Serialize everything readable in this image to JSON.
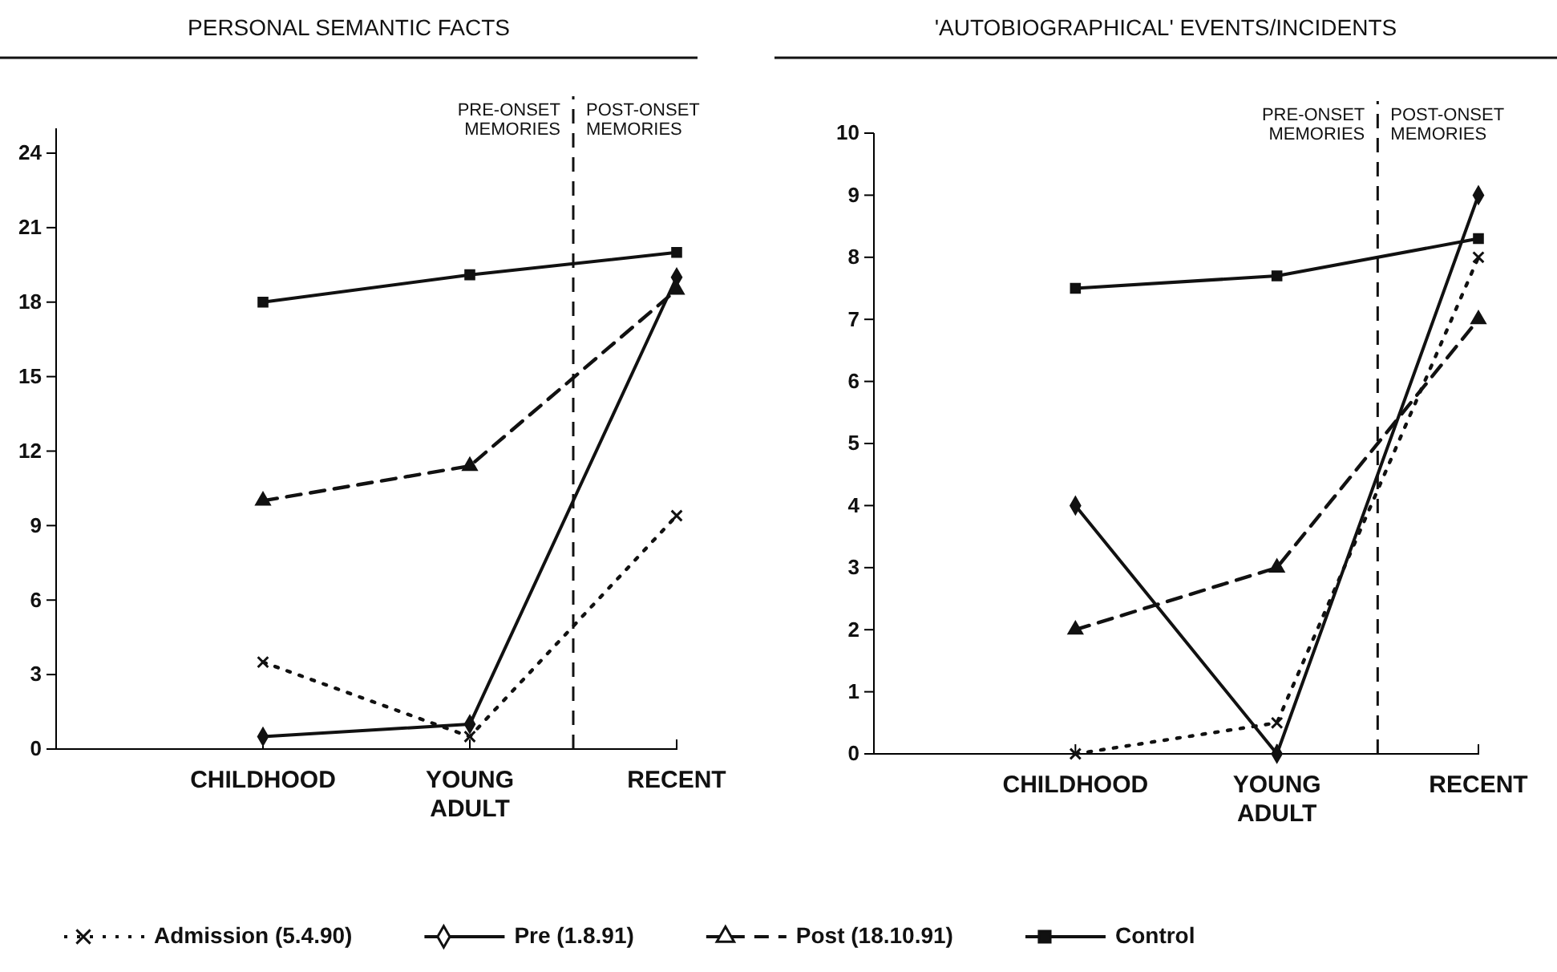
{
  "chart_data": [
    {
      "type": "line",
      "title": "PERSONAL SEMANTIC FACTS",
      "categories": [
        "CHILDHOOD",
        "YOUNG ADULT",
        "RECENT"
      ],
      "ylim": [
        0,
        25
      ],
      "yticks": [
        0,
        3,
        6,
        9,
        12,
        15,
        18,
        21,
        24
      ],
      "grid": false,
      "legend": "bottom",
      "annotations": [
        "PRE-ONSET MEMORIES",
        "POST-ONSET MEMORIES"
      ],
      "series": [
        {
          "name": "Admission (5.4.90)",
          "color": "#111111",
          "marker": "cross",
          "line_style": "dotted",
          "values": [
            3.5,
            0.5,
            9.4
          ]
        },
        {
          "name": "Pre (1.8.91)",
          "color": "#111111",
          "marker": "diamond",
          "line_style": "solid",
          "values": [
            0.5,
            1,
            19
          ]
        },
        {
          "name": "Post (18.10.91)",
          "color": "#111111",
          "marker": "triangle",
          "line_style": "dashed",
          "values": [
            10,
            11.4,
            18.5
          ]
        },
        {
          "name": "Control",
          "color": "#111111",
          "marker": "square",
          "line_style": "solid",
          "values": [
            18,
            19.1,
            20
          ]
        }
      ]
    },
    {
      "type": "line",
      "title": "'AUTOBIOGRAPHICAL' EVENTS/INCIDENTS",
      "categories": [
        "CHILDHOOD",
        "YOUNG ADULT",
        "RECENT"
      ],
      "ylim": [
        0,
        10
      ],
      "yticks": [
        0,
        1,
        2,
        3,
        4,
        5,
        6,
        7,
        8,
        9,
        10
      ],
      "grid": false,
      "annotations": [
        "PRE-ONSET MEMORIES",
        "POST-ONSET MEMORIES"
      ],
      "series": [
        {
          "color": "#111111",
          "marker": "cross",
          "line_style": "dotted",
          "values": [
            0,
            0.5,
            8
          ]
        },
        {
          "color": "#111111",
          "marker": "diamond",
          "line_style": "solid",
          "values": [
            4,
            0,
            9
          ]
        },
        {
          "color": "#111111",
          "marker": "triangle",
          "line_style": "dashed",
          "values": [
            2,
            3,
            7
          ]
        },
        {
          "color": "#111111",
          "marker": "square",
          "line_style": "solid",
          "values": [
            7.5,
            7.7,
            8.3
          ]
        }
      ]
    }
  ]
}
